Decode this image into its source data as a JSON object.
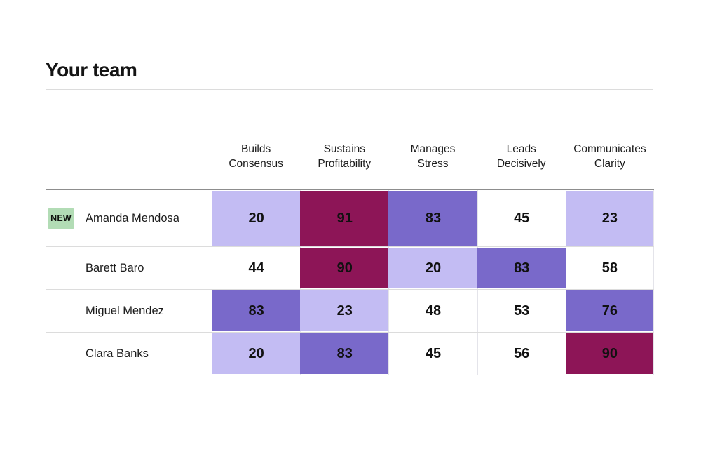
{
  "page": {
    "title": "Your team"
  },
  "colors": {
    "cell_low": "#c3bcf3",
    "cell_mid": "#ffffff",
    "cell_high": "#7969ca",
    "cell_max": "#8d1557",
    "badge_bg": "#b2dcb5",
    "table_top_border": "#8d8d8d",
    "row_divider": "#dcdcdc"
  },
  "table": {
    "columns": [
      {
        "label": "Builds\nConsensus"
      },
      {
        "label": "Sustains\nProfitability"
      },
      {
        "label": "Manages\nStress"
      },
      {
        "label": "Leads\nDecisively"
      },
      {
        "label": "Communicates\nClarity"
      }
    ],
    "rows": [
      {
        "name": "Amanda Mendosa",
        "badge": "NEW",
        "cells": [
          {
            "value": 20,
            "level": "low"
          },
          {
            "value": 91,
            "level": "max"
          },
          {
            "value": 83,
            "level": "high"
          },
          {
            "value": 45,
            "level": "mid"
          },
          {
            "value": 23,
            "level": "low"
          }
        ]
      },
      {
        "name": "Barett Baro",
        "badge": "",
        "cells": [
          {
            "value": 44,
            "level": "mid"
          },
          {
            "value": 90,
            "level": "max"
          },
          {
            "value": 20,
            "level": "low"
          },
          {
            "value": 83,
            "level": "high"
          },
          {
            "value": 58,
            "level": "mid"
          }
        ]
      },
      {
        "name": "Miguel Mendez",
        "badge": "",
        "cells": [
          {
            "value": 83,
            "level": "high"
          },
          {
            "value": 23,
            "level": "low"
          },
          {
            "value": 48,
            "level": "mid"
          },
          {
            "value": 53,
            "level": "mid"
          },
          {
            "value": 76,
            "level": "high"
          }
        ]
      },
      {
        "name": "Clara Banks",
        "badge": "",
        "cells": [
          {
            "value": 20,
            "level": "low"
          },
          {
            "value": 83,
            "level": "high"
          },
          {
            "value": 45,
            "level": "mid"
          },
          {
            "value": 56,
            "level": "mid"
          },
          {
            "value": 90,
            "level": "max"
          }
        ]
      }
    ]
  }
}
